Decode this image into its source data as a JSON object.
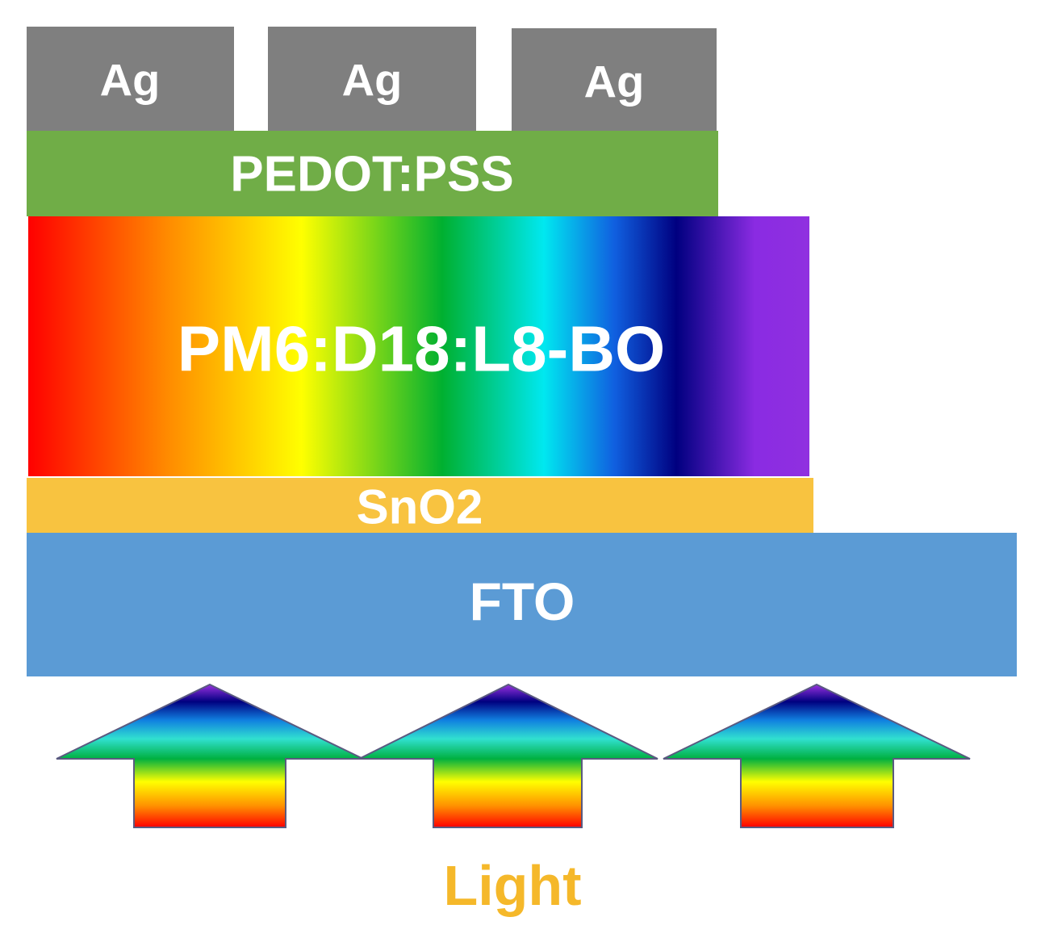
{
  "electrodes": [
    {
      "label": "Ag"
    },
    {
      "label": "Ag"
    },
    {
      "label": "Ag"
    }
  ],
  "layers": [
    {
      "label": "PEDOT:PSS"
    },
    {
      "label": "PM6:D18:L8-BO"
    },
    {
      "label": "SnO2"
    },
    {
      "label": "FTO"
    }
  ],
  "light": {
    "label": "Light"
  }
}
